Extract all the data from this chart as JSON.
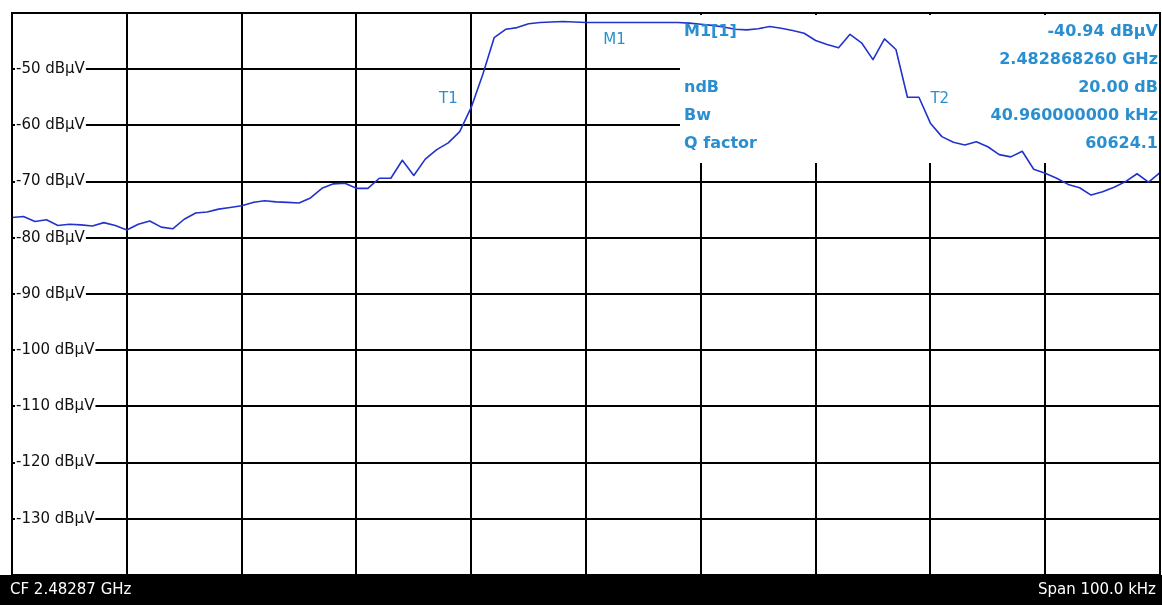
{
  "chart_data": {
    "type": "line",
    "tick_labels": "y",
    "grid": true,
    "marker": "none",
    "line_style": "solid",
    "categories": [
      null,
      null,
      null,
      null,
      null,
      null,
      null,
      null,
      null,
      null,
      null,
      null,
      null,
      null,
      null,
      null,
      null,
      null,
      null,
      null,
      null,
      null,
      null,
      null,
      null,
      null,
      null,
      null,
      null,
      null,
      null,
      null,
      null,
      null,
      null,
      null,
      null,
      null,
      null,
      null,
      null,
      null,
      null,
      null,
      null,
      null,
      null,
      null,
      null,
      null,
      null,
      null,
      null,
      null,
      null,
      null,
      null,
      null,
      null,
      null,
      null,
      null,
      null,
      null,
      null,
      null,
      null,
      null,
      null,
      null,
      null,
      null,
      null,
      null,
      null,
      null,
      null,
      null,
      null,
      null,
      null,
      null,
      null,
      null,
      null,
      null,
      null,
      null,
      null,
      null,
      null,
      null,
      null,
      null,
      null,
      null,
      null,
      null,
      null,
      null,
      null
    ],
    "ylim": [
      -140,
      -40
    ],
    "yticks": [
      {
        "value": -50,
        "label": "-50 dBµV"
      },
      {
        "value": -60,
        "label": "-60 dBµV"
      },
      {
        "value": -70,
        "label": "-70 dBµV"
      },
      {
        "value": -80,
        "label": "-80 dBµV"
      },
      {
        "value": -90,
        "label": "-90 dBµV"
      },
      {
        "value": -100,
        "label": "-100 dBµV"
      },
      {
        "value": -110,
        "label": "-110 dBµV"
      },
      {
        "value": -120,
        "label": "-120 dBµV"
      },
      {
        "value": -130,
        "label": "-130 dBµV"
      }
    ],
    "series": [
      {
        "color": "#2233cc",
        "values": [
          -76.4,
          -76.2,
          -77.1,
          -76.8,
          -77.8,
          -77.6,
          -77.7,
          -77.9,
          -77.3,
          -77.8,
          -78.6,
          -77.6,
          -77,
          -78.1,
          -78.4,
          -76.7,
          -75.6,
          -75.4,
          -74.9,
          -74.6,
          -74.3,
          -73.7,
          -73.4,
          -73.6,
          -73.7,
          -73.8,
          -72.9,
          -71.2,
          -70.4,
          -70.3,
          -71.2,
          -71.2,
          -69.4,
          -69.4,
          -66.2,
          -68.9,
          -66,
          -64.3,
          -63.1,
          -61.1,
          -56.8,
          -51,
          -44.4,
          -42.9,
          -42.6,
          -41.9,
          -41.7,
          -41.6,
          -41.5,
          -41.6,
          -41.7,
          -41.7,
          -41.7,
          -41.7,
          -41.7,
          -41.7,
          -41.7,
          -41.7,
          -41.7,
          -41.8,
          -42,
          -42.2,
          -42.5,
          -42.9,
          -43,
          -42.8,
          -42.4,
          -42.7,
          -43.1,
          -43.6,
          -44.9,
          -45.6,
          -46.2,
          -43.8,
          -45.3,
          -48.3,
          -44.6,
          -46.5,
          -55,
          -55,
          -59.6,
          -62,
          -63,
          -63.5,
          -62.9,
          -63.8,
          -65.2,
          -65.6,
          -64.6,
          -67.8,
          -68.5,
          -69.4,
          -70.5,
          -71.1,
          -72.4,
          -71.8,
          -71,
          -70,
          -68.6,
          -70.1,
          -68.4
        ]
      }
    ],
    "annotations": [
      "CF 2.48287 GHz",
      "Span 100.0 kHz",
      "M1[1]",
      "-40.94 dBµV",
      "2.482868260 GHz",
      "ndB",
      "20.00 dB",
      "Bw",
      "40.960000000 kHz",
      "Q factor",
      "60624.1",
      "M1",
      "T1",
      "T2"
    ]
  }
}
